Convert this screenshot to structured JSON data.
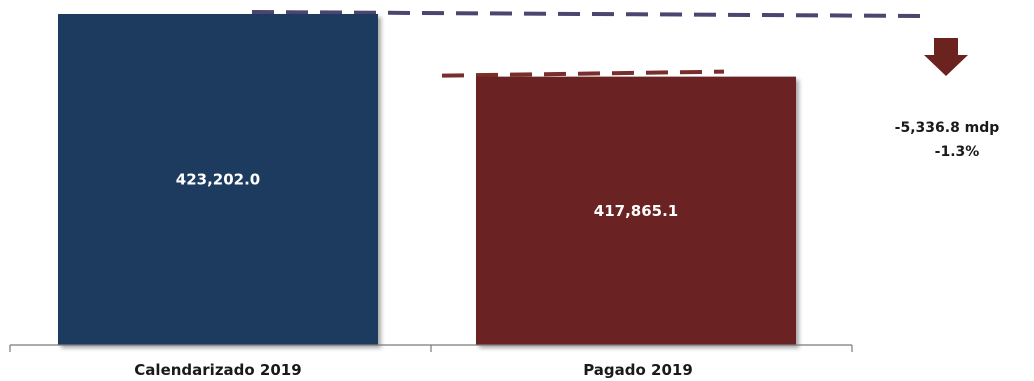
{
  "chart_data": {
    "type": "bar",
    "categories": [
      "Calendarizado 2019",
      "Pagado 2019"
    ],
    "values": [
      423202.0,
      417865.1
    ],
    "value_labels": [
      "423,202.0",
      "417,865.1"
    ],
    "colors": [
      "#1f3a5f",
      "#6b2320"
    ],
    "ylim": [
      0,
      423202.0
    ],
    "grid": false,
    "annotation": {
      "difference": "-5,336.8 mdp",
      "percent": "-1.3%",
      "arrow_icon": "down-arrow-icon",
      "arrow_color": "#6b2320",
      "ref_line_colors": [
        "#4a4670",
        "#7a2e2b"
      ]
    }
  }
}
